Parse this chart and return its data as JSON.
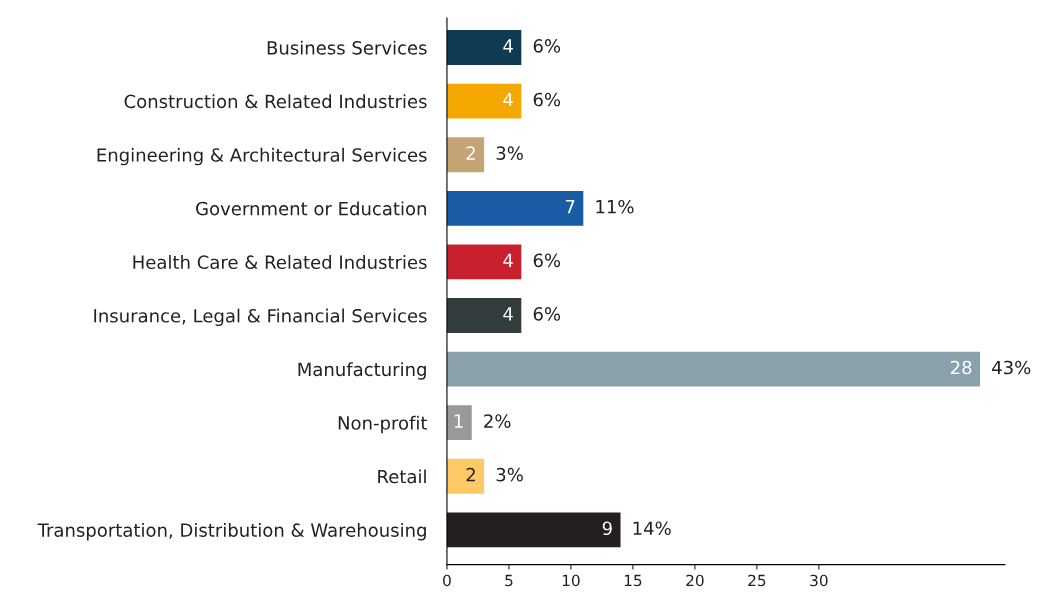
{
  "chart_data": {
    "type": "bar",
    "orientation": "horizontal",
    "categories": [
      "Business Services",
      "Construction & Related Industries",
      "Engineering & Architectural Services",
      "Government or Education",
      "Health Care & Related Industries",
      "Insurance, Legal & Financial Services",
      "Manufacturing",
      "Non-profit",
      "Retail",
      "Transportation, Distribution & Warehousing"
    ],
    "values": [
      6,
      6,
      3,
      11,
      6,
      6,
      43,
      2,
      3,
      14
    ],
    "colors": [
      "#0e3a52",
      "#f5a800",
      "#c4a374",
      "#1a5ba6",
      "#c8202f",
      "#353c3d",
      "#8aa0ab",
      "#999999",
      "#ffc966",
      "#231f20"
    ],
    "value_labels": [
      "6%",
      "6%",
      "3%",
      "11%",
      "6%",
      "6%",
      "43%",
      "2%",
      "3%",
      "14%"
    ],
    "annotations": [
      {
        "text": "4",
        "x": 6,
        "y": "Business Services"
      },
      {
        "text": "4",
        "x": 6,
        "y": "Construction & Related Industries"
      },
      {
        "text": "2",
        "x": 3,
        "y": "Engineering & Architectural Services"
      },
      {
        "text": "7",
        "x": 11,
        "y": "Government or Education"
      },
      {
        "text": "4",
        "x": 6,
        "y": "Health Care & Related Industries"
      },
      {
        "text": "4",
        "x": 6,
        "y": "Insurance, Legal & Financial Services"
      },
      {
        "text": "28",
        "x": 43,
        "y": "Manufacturing"
      },
      {
        "text": "1",
        "x": 2,
        "y": "Non-profit"
      },
      {
        "text": "2",
        "x": 3,
        "y": "Retail"
      },
      {
        "text": "9",
        "x": 14,
        "y": "Transportation, Distribution & Warehousing"
      }
    ],
    "xlim": [
      0,
      45
    ],
    "xticks": [
      0,
      5,
      10,
      15,
      20,
      25,
      30
    ],
    "grid": false
  }
}
